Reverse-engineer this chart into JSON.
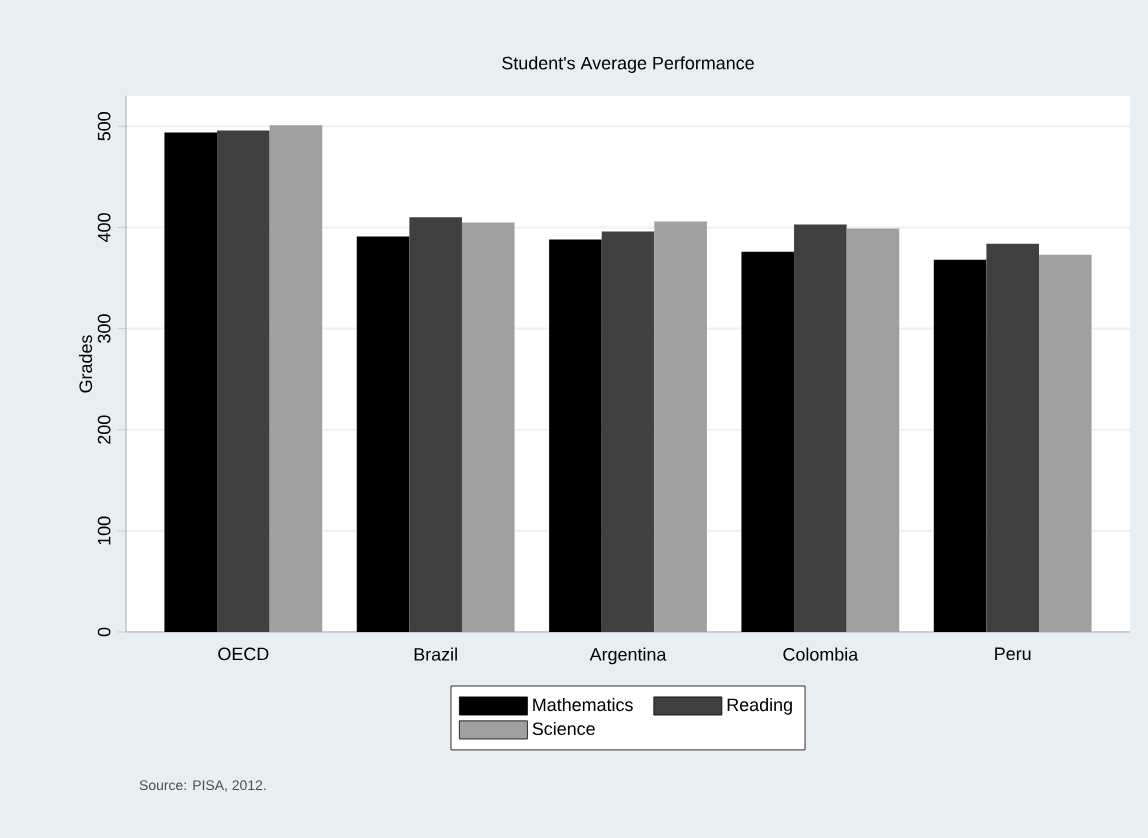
{
  "chart_data": {
    "type": "bar",
    "title": "Student's Average Performance",
    "ylabel": "Grades",
    "categories": [
      "OECD",
      "Brazil",
      "Argentina",
      "Colombia",
      "Peru"
    ],
    "series": [
      {
        "name": "Mathematics",
        "color": "#000000",
        "values": [
          494,
          391,
          388,
          376,
          368
        ]
      },
      {
        "name": "Reading",
        "color": "#404040",
        "values": [
          496,
          410,
          396,
          403,
          384
        ]
      },
      {
        "name": "Science",
        "color": "#a0a0a0",
        "values": [
          501,
          405,
          406,
          399,
          373
        ]
      }
    ],
    "ylim": [
      0,
      530
    ],
    "yticks": [
      0,
      100,
      200,
      300,
      400,
      500
    ],
    "grid": "y",
    "legend": "bottom",
    "annotations": [
      "Source: PISA, 2012."
    ]
  }
}
